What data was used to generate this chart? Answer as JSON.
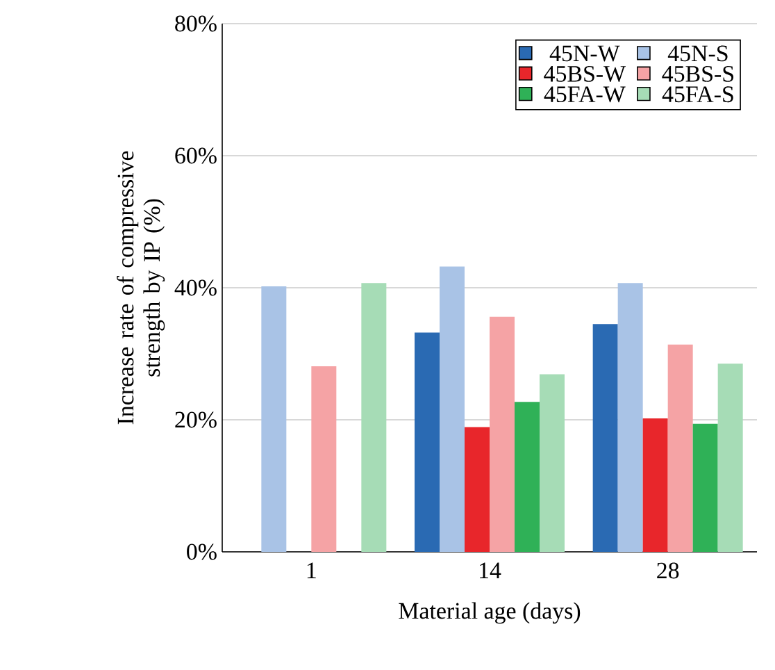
{
  "chart_data": {
    "type": "bar",
    "xlabel": "Material age (days)",
    "ylabel": "Increase rate of compressive strength by IP (%)",
    "categories": [
      "1",
      "14",
      "28"
    ],
    "series": [
      {
        "name": "45N-W",
        "color": "#2a6ab3",
        "values": [
          null,
          33.2,
          34.5
        ]
      },
      {
        "name": "45N-S",
        "color": "#a9c3e6",
        "values": [
          40.2,
          43.2,
          40.7
        ]
      },
      {
        "name": "45BS-W",
        "color": "#e8262b",
        "values": [
          null,
          18.9,
          20.2
        ]
      },
      {
        "name": "45BS-S",
        "color": "#f5a3a5",
        "values": [
          28.1,
          35.6,
          31.4
        ]
      },
      {
        "name": "45FA-W",
        "color": "#2fb157",
        "values": [
          null,
          22.7,
          19.4
        ]
      },
      {
        "name": "45FA-S",
        "color": "#a6dcb6",
        "values": [
          40.7,
          26.9,
          28.5
        ]
      }
    ],
    "ylim": [
      0,
      80
    ],
    "yticks": [
      {
        "value": 0,
        "label": "0%"
      },
      {
        "value": 20,
        "label": "20%"
      },
      {
        "value": 40,
        "label": "40%"
      },
      {
        "value": 60,
        "label": "60%"
      },
      {
        "value": 80,
        "label": "80%"
      }
    ],
    "grid": "y",
    "legend": "top right"
  }
}
